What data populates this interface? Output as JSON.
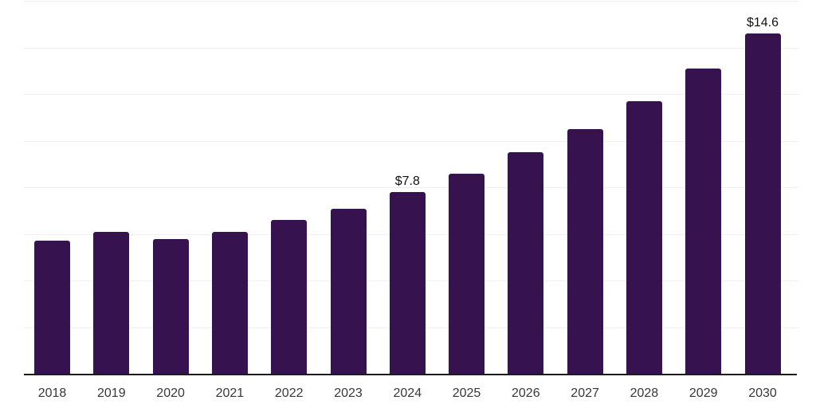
{
  "chart_data": {
    "type": "bar",
    "title": "",
    "xlabel": "",
    "ylabel": "",
    "categories": [
      "2018",
      "2019",
      "2020",
      "2021",
      "2022",
      "2023",
      "2024",
      "2025",
      "2026",
      "2027",
      "2028",
      "2029",
      "2030"
    ],
    "values": [
      5.7,
      6.1,
      5.8,
      6.1,
      6.6,
      7.1,
      7.8,
      8.6,
      9.5,
      10.5,
      11.7,
      13.1,
      14.6
    ],
    "data_labels": [
      "",
      "",
      "",
      "",
      "",
      "",
      "$7.8",
      "",
      "",
      "",
      "",
      "",
      "$14.6"
    ],
    "ylim": [
      0,
      16
    ],
    "grid_step": 2,
    "grid": "horizontal-only",
    "y_axis_labels_visible": false,
    "legend": "none",
    "colors": {
      "bar": "#36124E",
      "gridline": "#F0F0F2",
      "axis_line": "#1C1C1C",
      "tick_label": "#383838",
      "data_label": "#111111",
      "background": "#FFFFFF"
    }
  }
}
